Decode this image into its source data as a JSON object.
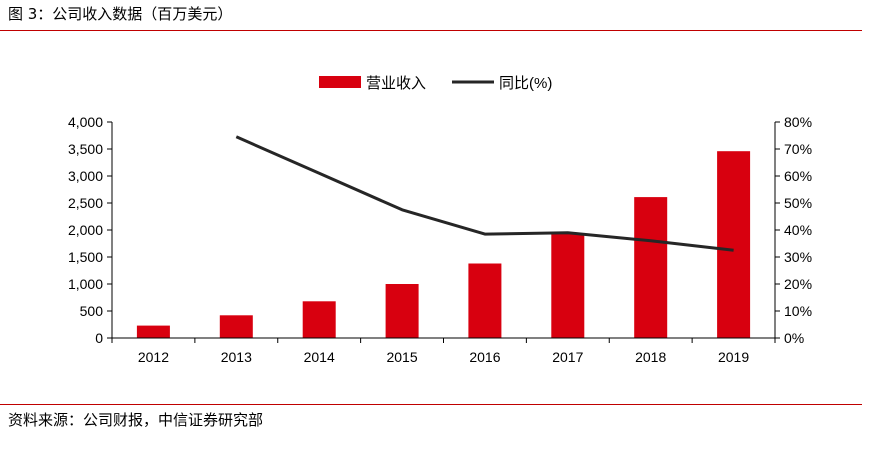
{
  "figure": {
    "title": "图 3：公司收入数据（百万美元）",
    "source": "资料来源：公司财报，中信证券研究部"
  },
  "colors": {
    "bar": "#d8000f",
    "line": "#262626",
    "rule": "#c00000",
    "axis": "#000000"
  },
  "chart_data": {
    "type": "bar",
    "categories": [
      "2012",
      "2013",
      "2014",
      "2015",
      "2016",
      "2017",
      "2018",
      "2019"
    ],
    "series": [
      {
        "name": "营业收入",
        "type": "bar",
        "axis": "left",
        "values": [
          230,
          420,
          680,
          1000,
          1380,
          1930,
          2610,
          3460
        ]
      },
      {
        "name": "同比(%)",
        "type": "line",
        "axis": "right",
        "values": [
          null,
          74.5,
          61.0,
          47.5,
          38.5,
          39.0,
          36.0,
          32.5
        ]
      }
    ],
    "y_left": {
      "min": 0,
      "max": 4000,
      "step": 500,
      "tick_labels": [
        "0",
        "500",
        "1,000",
        "1,500",
        "2,000",
        "2,500",
        "3,000",
        "3,500",
        "4,000"
      ]
    },
    "y_right": {
      "min": 0,
      "max": 80,
      "step": 10,
      "tick_labels": [
        "0%",
        "10%",
        "20%",
        "30%",
        "40%",
        "50%",
        "60%",
        "70%",
        "80%"
      ]
    },
    "legend": "top-center",
    "grid": false
  }
}
